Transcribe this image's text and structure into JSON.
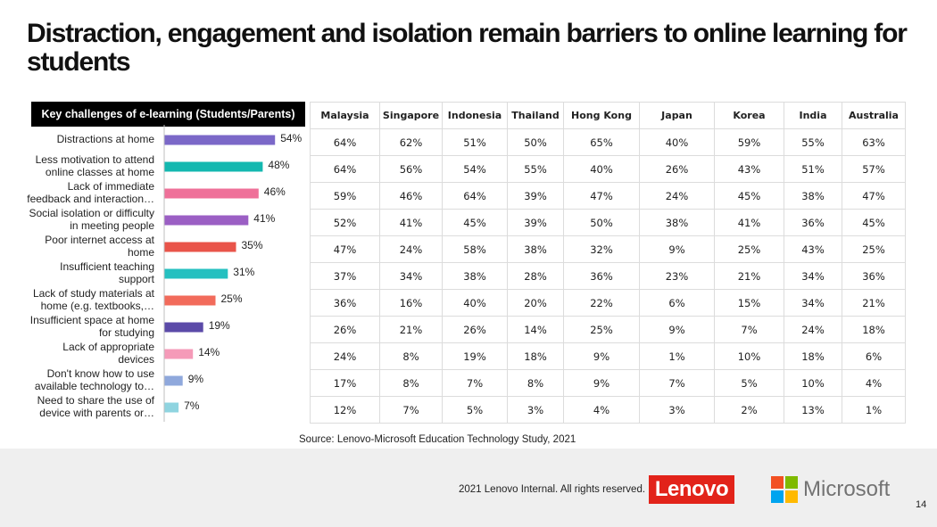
{
  "slide": {
    "title": "Distraction, engagement and isolation remain barriers to online learning for students",
    "source": "Source: Lenovo-Microsoft Education Technology Study, 2021",
    "copyright": "2021 Lenovo Internal. All rights reserved.",
    "page_number": "14",
    "lenovo_logo_text": "Lenovo",
    "microsoft_logo_text": "Microsoft",
    "microsoft_logo_colors": [
      "#f25022",
      "#7fba00",
      "#00a4ef",
      "#ffb900"
    ],
    "lenovo_brand_color": "#e2231a"
  },
  "chart_data": [
    {
      "type": "bar",
      "orientation": "horizontal",
      "title": "Key challenges of e-learning (Students/Parents)",
      "categories": [
        [
          "Distractions at home"
        ],
        [
          "Less motivation to attend",
          "online classes at home"
        ],
        [
          "Lack of immediate",
          "feedback and interaction…"
        ],
        [
          "Social isolation or difficulty",
          "in meeting people"
        ],
        [
          "Poor internet access at",
          "home"
        ],
        [
          "Insufficient teaching",
          "support"
        ],
        [
          "Lack of study materials at",
          "home (e.g. textbooks,…"
        ],
        [
          "Insufficient space at home",
          "for studying"
        ],
        [
          "Lack of appropriate",
          "devices"
        ],
        [
          "Don't know how to use",
          "available technology to…"
        ],
        [
          "Need to share the use of",
          "device with parents or…"
        ]
      ],
      "values": [
        54,
        48,
        46,
        41,
        35,
        31,
        25,
        19,
        14,
        9,
        7
      ],
      "value_labels": [
        "54%",
        "48%",
        "46%",
        "41%",
        "35%",
        "31%",
        "25%",
        "19%",
        "14%",
        "9%",
        "7%"
      ],
      "colors": [
        "#7b68c8",
        "#14b8b0",
        "#ef7099",
        "#9b5fc4",
        "#e9544a",
        "#25c0c0",
        "#f26b5b",
        "#5b4aa8",
        "#f59ab8",
        "#8fa8dc",
        "#8fd4e0"
      ],
      "xlim": [
        0,
        60
      ]
    },
    {
      "type": "table",
      "columns": [
        "Malaysia",
        "Singapore",
        "Indonesia",
        "Thailand",
        "Hong Kong",
        "Japan",
        "Korea",
        "India",
        "Australia"
      ],
      "rows": [
        [
          "64%",
          "62%",
          "51%",
          "50%",
          "65%",
          "40%",
          "59%",
          "55%",
          "63%"
        ],
        [
          "64%",
          "56%",
          "54%",
          "55%",
          "40%",
          "26%",
          "43%",
          "51%",
          "57%"
        ],
        [
          "59%",
          "46%",
          "64%",
          "39%",
          "47%",
          "24%",
          "45%",
          "38%",
          "47%"
        ],
        [
          "52%",
          "41%",
          "45%",
          "39%",
          "50%",
          "38%",
          "41%",
          "36%",
          "45%"
        ],
        [
          "47%",
          "24%",
          "58%",
          "38%",
          "32%",
          "9%",
          "25%",
          "43%",
          "25%"
        ],
        [
          "37%",
          "34%",
          "38%",
          "28%",
          "36%",
          "23%",
          "21%",
          "34%",
          "36%"
        ],
        [
          "36%",
          "16%",
          "40%",
          "20%",
          "22%",
          "6%",
          "15%",
          "34%",
          "21%"
        ],
        [
          "26%",
          "21%",
          "26%",
          "14%",
          "25%",
          "9%",
          "7%",
          "24%",
          "18%"
        ],
        [
          "24%",
          "8%",
          "19%",
          "18%",
          "9%",
          "1%",
          "10%",
          "18%",
          "6%"
        ],
        [
          "17%",
          "8%",
          "7%",
          "8%",
          "9%",
          "7%",
          "5%",
          "10%",
          "4%"
        ],
        [
          "12%",
          "7%",
          "5%",
          "3%",
          "4%",
          "3%",
          "2%",
          "13%",
          "1%"
        ]
      ]
    }
  ]
}
